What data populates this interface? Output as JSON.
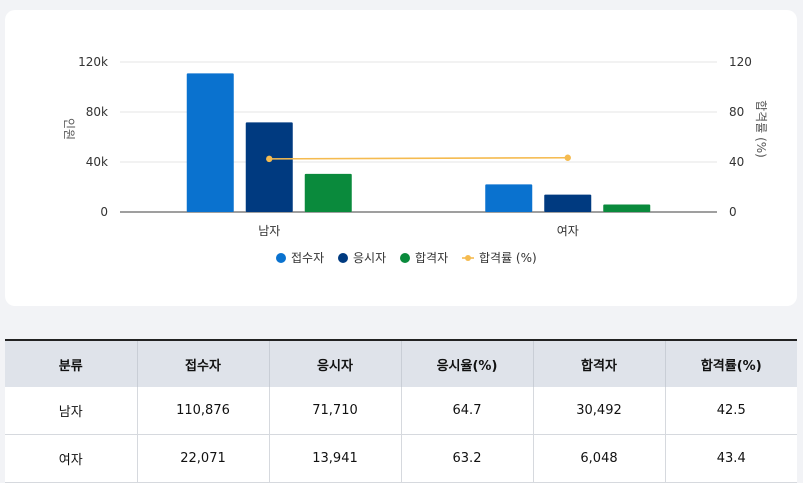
{
  "chart_data": {
    "type": "bar",
    "categories": [
      "남자",
      "여자"
    ],
    "series": [
      {
        "name": "접수자",
        "values": [
          110876,
          22071
        ],
        "color": "#0a72cf"
      },
      {
        "name": "응시자",
        "values": [
          71710,
          13941
        ],
        "color": "#003a80"
      },
      {
        "name": "합격자",
        "values": [
          30492,
          6048
        ],
        "color": "#0a8a3c"
      }
    ],
    "line_series": {
      "name": "합격률 (%)",
      "values": [
        42.5,
        43.4
      ],
      "color": "#f5bb50",
      "axis": "right"
    },
    "ylabel": "인원",
    "y2label": "합격률 (%)",
    "ylim": [
      0,
      120000
    ],
    "y2lim": [
      0,
      120
    ],
    "yticks": [
      "0",
      "40k",
      "80k",
      "120k"
    ],
    "y2ticks": [
      "0",
      "40",
      "80",
      "120"
    ],
    "legend_position": "bottom"
  },
  "table": {
    "headers": [
      "분류",
      "접수자",
      "응시자",
      "응시율(%)",
      "합격자",
      "합격률(%)"
    ],
    "rows": [
      [
        "남자",
        "110,876",
        "71,710",
        "64.7",
        "30,492",
        "42.5"
      ],
      [
        "여자",
        "22,071",
        "13,941",
        "63.2",
        "6,048",
        "43.4"
      ]
    ]
  }
}
